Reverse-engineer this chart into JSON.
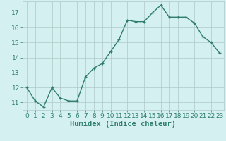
{
  "x": [
    0,
    1,
    2,
    3,
    4,
    5,
    6,
    7,
    8,
    9,
    10,
    11,
    12,
    13,
    14,
    15,
    16,
    17,
    18,
    19,
    20,
    21,
    22,
    23
  ],
  "y": [
    12.0,
    11.1,
    10.7,
    12.0,
    11.3,
    11.1,
    11.1,
    12.7,
    13.3,
    13.6,
    14.4,
    15.2,
    16.5,
    16.4,
    16.4,
    17.0,
    17.5,
    16.7,
    16.7,
    16.7,
    16.3,
    15.4,
    15.0,
    14.3
  ],
  "line_color": "#2e7d6e",
  "marker": "+",
  "bg_color": "#d4f0f0",
  "grid_color": "#b0c8c8",
  "xlabel": "Humidex (Indice chaleur)",
  "xlim": [
    -0.5,
    23.5
  ],
  "ylim": [
    10.5,
    17.75
  ],
  "yticks": [
    11,
    12,
    13,
    14,
    15,
    16,
    17
  ],
  "xticks": [
    0,
    1,
    2,
    3,
    4,
    5,
    6,
    7,
    8,
    9,
    10,
    11,
    12,
    13,
    14,
    15,
    16,
    17,
    18,
    19,
    20,
    21,
    22,
    23
  ],
  "tick_label_size": 6.5,
  "xlabel_size": 7.5,
  "line_width": 1.0,
  "marker_size": 3.5
}
